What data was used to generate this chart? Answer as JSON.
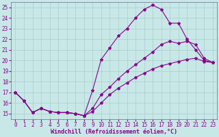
{
  "background_color": "#c8e8e8",
  "grid_color": "#aacccc",
  "line_color": "#880088",
  "marker": "*",
  "markersize": 3,
  "linewidth": 0.8,
  "xlabel": "Windchill (Refroidissement éolien,°C)",
  "xlabel_fontsize": 6.0,
  "tick_fontsize": 5.5,
  "xlim": [
    -0.5,
    23.5
  ],
  "ylim": [
    14.5,
    25.5
  ],
  "yticks": [
    15,
    16,
    17,
    18,
    19,
    20,
    21,
    22,
    23,
    24,
    25
  ],
  "xticks": [
    0,
    1,
    2,
    3,
    4,
    5,
    6,
    7,
    8,
    9,
    10,
    11,
    12,
    13,
    14,
    15,
    16,
    17,
    18,
    19,
    20,
    21,
    22,
    23
  ],
  "curve1_x": [
    0,
    1,
    2,
    3,
    4,
    5,
    6,
    7,
    8,
    9,
    10,
    11,
    12,
    13,
    14,
    15,
    16,
    17,
    18,
    19,
    20,
    21,
    22,
    23
  ],
  "curve1_y": [
    17.0,
    16.2,
    15.1,
    15.5,
    15.2,
    15.1,
    15.1,
    15.0,
    14.8,
    17.2,
    20.1,
    21.2,
    22.3,
    23.0,
    24.0,
    24.8,
    25.2,
    24.8,
    23.5,
    23.5,
    22.0,
    21.0,
    20.0,
    19.8
  ],
  "curve2_x": [
    0,
    1,
    2,
    3,
    4,
    5,
    6,
    7,
    8,
    9,
    10,
    11,
    12,
    13,
    14,
    15,
    16,
    17,
    18,
    19,
    20,
    21,
    22,
    23
  ],
  "curve2_y": [
    17.0,
    16.2,
    15.1,
    15.5,
    15.2,
    15.1,
    15.1,
    15.0,
    14.8,
    15.5,
    16.8,
    17.5,
    18.3,
    19.0,
    19.6,
    20.2,
    20.8,
    21.5,
    21.8,
    21.6,
    21.8,
    21.5,
    20.2,
    19.8
  ],
  "curve3_x": [
    0,
    1,
    2,
    3,
    4,
    5,
    6,
    7,
    8,
    9,
    10,
    11,
    12,
    13,
    14,
    15,
    16,
    17,
    18,
    19,
    20,
    21,
    22,
    23
  ],
  "curve3_y": [
    17.0,
    16.2,
    15.1,
    15.5,
    15.2,
    15.1,
    15.1,
    15.0,
    14.8,
    15.2,
    16.0,
    16.8,
    17.4,
    17.9,
    18.4,
    18.8,
    19.2,
    19.5,
    19.7,
    19.9,
    20.1,
    20.2,
    19.9,
    19.8
  ]
}
